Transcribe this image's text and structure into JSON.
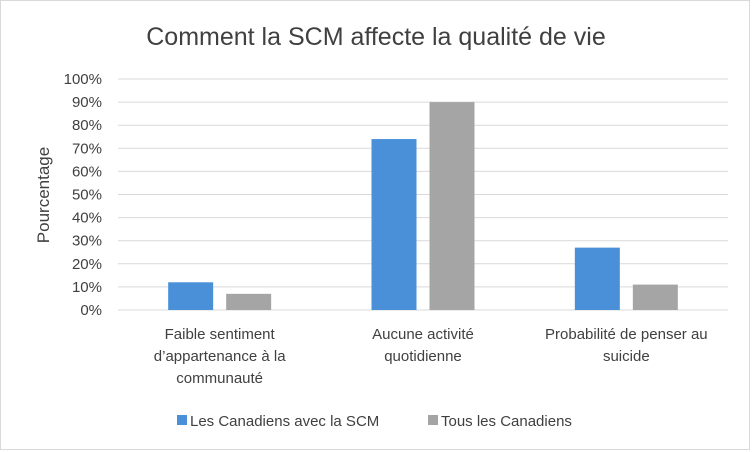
{
  "chart_data": {
    "type": "bar",
    "title": "Comment la SCM affecte la qualité de vie",
    "xlabel": "",
    "ylabel": "Pourcentage",
    "ylim": [
      0,
      100
    ],
    "y_ticks": [
      "0%",
      "10%",
      "20%",
      "30%",
      "40%",
      "50%",
      "60%",
      "70%",
      "80%",
      "90%",
      "100%"
    ],
    "y_tick_values": [
      0,
      10,
      20,
      30,
      40,
      50,
      60,
      70,
      80,
      90,
      100
    ],
    "grid": true,
    "legend_position": "bottom",
    "categories": [
      [
        "Faible sentiment",
        "d’appartenance à la",
        "communauté"
      ],
      [
        "Aucune activité",
        "quotidienne"
      ],
      [
        "Probabilité de penser au",
        "suicide"
      ]
    ],
    "series": [
      {
        "name": "Les Canadiens avec la SCM",
        "color": "#4a90d9",
        "values": [
          12,
          74,
          27
        ]
      },
      {
        "name": "Tous les Canadiens",
        "color": "#a5a5a5",
        "values": [
          7,
          90,
          11
        ]
      }
    ],
    "gridline_color": "#d9d9d9"
  }
}
